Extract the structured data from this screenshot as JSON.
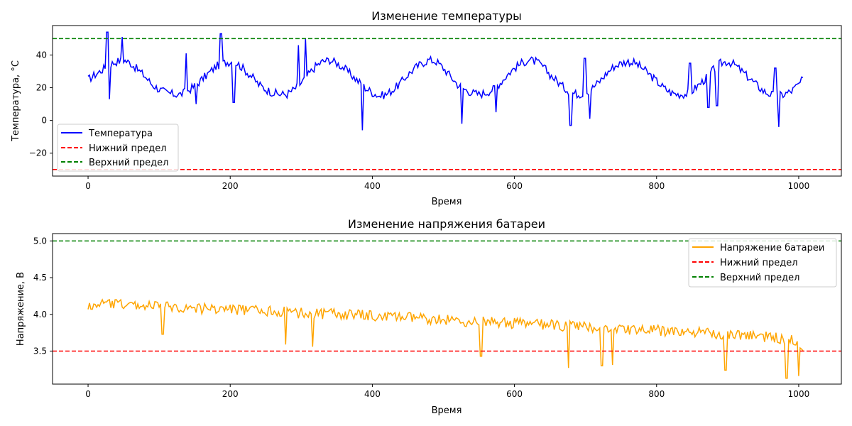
{
  "chart_data": [
    {
      "type": "line",
      "title": "Изменение температуры",
      "xlabel": "Время",
      "ylabel": "Температура, °C",
      "xlim": [
        -50,
        1060
      ],
      "ylim": [
        -34,
        58
      ],
      "xticks": [
        0,
        200,
        400,
        600,
        800,
        1000
      ],
      "yticks": [
        -20,
        0,
        20,
        40
      ],
      "tick_labels_x": [
        "0",
        "200",
        "400",
        "600",
        "800",
        "1000"
      ],
      "tick_labels_y": [
        "−20",
        "0",
        "20",
        "40"
      ],
      "legend_position": "lower-left",
      "grid": false,
      "series": [
        {
          "name": "Температура",
          "color": "#0000ff",
          "style": "solid",
          "x": [
            0,
            10,
            20,
            30,
            40,
            50,
            60,
            70,
            80,
            90,
            100,
            110,
            120,
            130,
            140,
            150,
            160,
            170,
            180,
            190,
            200,
            210,
            220,
            230,
            240,
            250,
            260,
            270,
            280,
            290,
            300,
            310,
            320,
            330,
            340,
            350,
            360,
            370,
            380,
            390,
            400,
            410,
            420,
            430,
            440,
            450,
            460,
            470,
            480,
            490,
            500,
            510,
            520,
            530,
            540,
            550,
            560,
            570,
            580,
            590,
            600,
            610,
            620,
            630,
            640,
            650,
            660,
            670,
            680,
            690,
            700,
            710,
            720,
            730,
            740,
            750,
            760,
            770,
            780,
            790,
            800,
            810,
            820,
            830,
            840,
            850,
            860,
            870,
            880,
            890,
            900,
            910,
            920,
            930,
            940,
            950,
            960,
            970,
            980,
            990,
            1000,
            1006
          ],
          "y": [
            25,
            28,
            31,
            34,
            36,
            37,
            35,
            31,
            27,
            22,
            19,
            17,
            16,
            16,
            18,
            21,
            25,
            29,
            33,
            35,
            36,
            35,
            31,
            27,
            22,
            19,
            17,
            16,
            16,
            19,
            23,
            28,
            33,
            36,
            37,
            35,
            32,
            28,
            24,
            20,
            17,
            15,
            16,
            19,
            23,
            28,
            32,
            35,
            37,
            36,
            32,
            27,
            22,
            19,
            17,
            16,
            17,
            19,
            23,
            28,
            32,
            35,
            37,
            36,
            33,
            28,
            24,
            20,
            17,
            16,
            17,
            20,
            24,
            29,
            33,
            35,
            36,
            35,
            32,
            28,
            24,
            20,
            17,
            16,
            16,
            18,
            22,
            26,
            31,
            35,
            36,
            34,
            30,
            26,
            22,
            18,
            16,
            15,
            16,
            18,
            22,
            25
          ],
          "spikes": [
            [
              27,
              54
            ],
            [
              30,
              13
            ],
            [
              48,
              51
            ],
            [
              138,
              41
            ],
            [
              152,
              10
            ],
            [
              187,
              53
            ],
            [
              205,
              11
            ],
            [
              296,
              46
            ],
            [
              306,
              50
            ],
            [
              386,
              -6
            ],
            [
              526,
              -2
            ],
            [
              574,
              5
            ],
            [
              679,
              -3
            ],
            [
              699,
              38
            ],
            [
              706,
              1
            ],
            [
              847,
              35
            ],
            [
              873,
              8
            ],
            [
              885,
              9
            ],
            [
              967,
              32
            ],
            [
              972,
              -4
            ]
          ]
        },
        {
          "name": "Нижний предел",
          "color": "#ff0000",
          "style": "dashed",
          "value": -30
        },
        {
          "name": "Верхний предел",
          "color": "#008000",
          "style": "dashed",
          "value": 50
        }
      ]
    },
    {
      "type": "line",
      "title": "Изменение напряжения батареи",
      "xlabel": "Время",
      "ylabel": "Напряжение, В",
      "xlim": [
        -50,
        1060
      ],
      "ylim": [
        3.05,
        5.1
      ],
      "xticks": [
        0,
        200,
        400,
        600,
        800,
        1000
      ],
      "yticks": [
        3.5,
        4.0,
        4.5,
        5.0
      ],
      "tick_labels_x": [
        "0",
        "200",
        "400",
        "600",
        "800",
        "1000"
      ],
      "tick_labels_y": [
        "3.5",
        "4.0",
        "4.5",
        "5.0"
      ],
      "legend_position": "top-right",
      "grid": false,
      "series": [
        {
          "name": "Напряжение батареи",
          "color": "#ffa500",
          "style": "solid",
          "x": [
            0,
            20,
            40,
            60,
            80,
            100,
            120,
            140,
            160,
            180,
            200,
            220,
            240,
            260,
            280,
            300,
            320,
            340,
            360,
            380,
            400,
            420,
            440,
            460,
            480,
            500,
            520,
            540,
            560,
            580,
            600,
            620,
            640,
            660,
            680,
            700,
            720,
            740,
            760,
            780,
            800,
            820,
            840,
            860,
            880,
            900,
            920,
            940,
            960,
            980,
            1000,
            1006
          ],
          "y": [
            4.18,
            4.2,
            4.19,
            4.18,
            4.17,
            4.16,
            4.15,
            4.14,
            4.13,
            4.13,
            4.12,
            4.11,
            4.1,
            4.1,
            4.08,
            4.07,
            4.06,
            4.06,
            4.05,
            4.04,
            4.03,
            4.02,
            4.01,
            4.0,
            3.99,
            3.98,
            3.96,
            3.95,
            3.95,
            3.94,
            3.93,
            3.92,
            3.91,
            3.9,
            3.89,
            3.88,
            3.87,
            3.86,
            3.85,
            3.84,
            3.83,
            3.82,
            3.81,
            3.8,
            3.79,
            3.78,
            3.77,
            3.76,
            3.74,
            3.72,
            3.68,
            3.61
          ],
          "spikes": [
            [
              5,
              4.07
            ],
            [
              105,
              3.73
            ],
            [
              278,
              3.59
            ],
            [
              316,
              3.56
            ],
            [
              553,
              3.43
            ],
            [
              676,
              3.27
            ],
            [
              723,
              3.3
            ],
            [
              738,
              3.31
            ],
            [
              897,
              3.24
            ],
            [
              983,
              3.13
            ],
            [
              1000,
              3.16
            ]
          ]
        },
        {
          "name": "Нижний предел",
          "color": "#ff0000",
          "style": "dashed",
          "value": 3.5
        },
        {
          "name": "Верхний предел",
          "color": "#008000",
          "style": "dashed",
          "value": 5.0
        }
      ]
    }
  ]
}
